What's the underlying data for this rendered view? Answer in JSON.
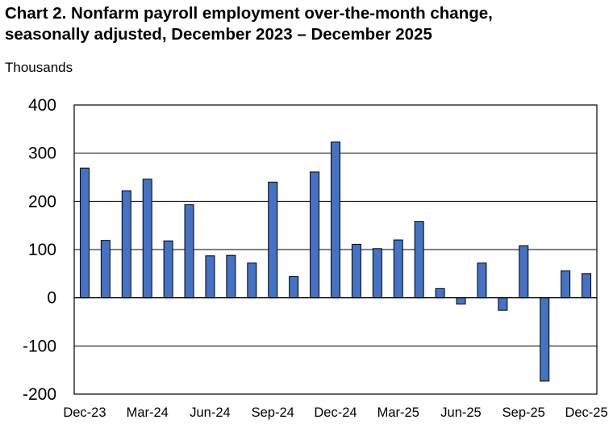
{
  "chart_data": {
    "type": "bar",
    "title_line1": "Chart 2. Nonfarm payroll employment over-the-month change,",
    "title_line2": "seasonally adjusted, December 2023 – December 2025",
    "unit_label": "Thousands",
    "ylim": [
      -200,
      400
    ],
    "yticks": [
      "400",
      "300",
      "200",
      "100",
      "0",
      "-100",
      "-200"
    ],
    "ytick_values": [
      400,
      300,
      200,
      100,
      0,
      -100,
      -200
    ],
    "xtick_labels": [
      "Dec-23",
      "Mar-24",
      "Jun-24",
      "Sep-24",
      "Dec-24",
      "Mar-25",
      "Jun-25",
      "Sep-25",
      "Dec-25"
    ],
    "categories": [
      "Dec-23",
      "Jan-24",
      "Feb-24",
      "Mar-24",
      "Apr-24",
      "May-24",
      "Jun-24",
      "Jul-24",
      "Aug-24",
      "Sep-24",
      "Oct-24",
      "Nov-24",
      "Dec-24",
      "Jan-25",
      "Feb-25",
      "Mar-25",
      "Apr-25",
      "May-25",
      "Jun-25",
      "Jul-25",
      "Aug-25",
      "Sep-25",
      "Oct-25",
      "Nov-25",
      "Dec-25"
    ],
    "values": [
      269,
      119,
      222,
      246,
      118,
      193,
      87,
      88,
      72,
      240,
      44,
      261,
      323,
      111,
      102,
      120,
      158,
      19,
      -13,
      72,
      -26,
      108,
      -173,
      56,
      50
    ],
    "bar_color": "#4472C4",
    "grid": true
  }
}
